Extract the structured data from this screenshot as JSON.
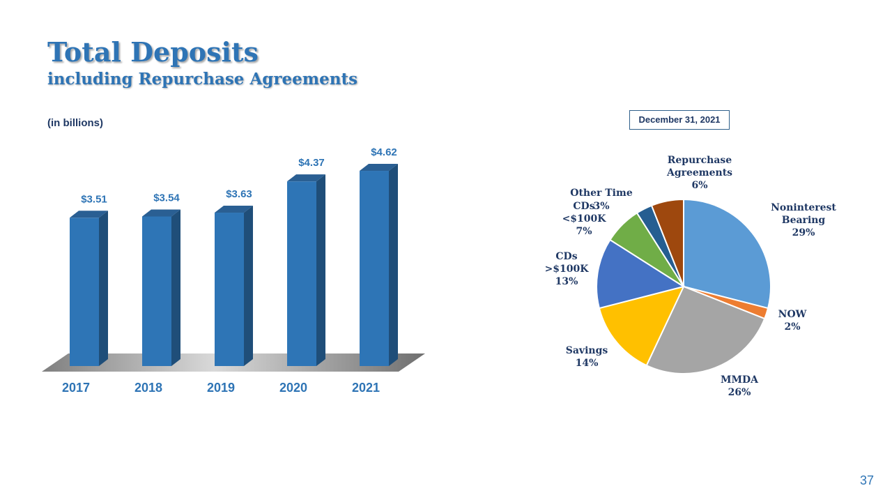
{
  "header": {
    "title": "Total Deposits",
    "subtitle": "including Repurchase Agreements"
  },
  "units_note": "(in billions)",
  "date_label": "December 31, 2021",
  "page_number": "37",
  "colors": {
    "title": "#2e74b5",
    "bar_front": "#2e75b6",
    "bar_side": "#1f4e79",
    "bar_top": "#2a5f93",
    "floor": "#a6a6a6"
  },
  "chart_data": [
    {
      "type": "bar",
      "categories": [
        "2017",
        "2018",
        "2019",
        "2020",
        "2021"
      ],
      "values": [
        3.51,
        3.54,
        3.63,
        4.37,
        4.62
      ],
      "data_labels": [
        "$3.51",
        "$3.54",
        "$3.63",
        "$4.37",
        "$4.62"
      ],
      "ylabel": "(in billions)",
      "grid": false,
      "style": "3d-column"
    },
    {
      "type": "pie",
      "title": "December 31, 2021",
      "slices": [
        {
          "label": "Noninterest Bearing",
          "value": 29,
          "display": "29%",
          "color": "#5b9bd5"
        },
        {
          "label": "NOW",
          "value": 2,
          "display": "2%",
          "color": "#ed7d31"
        },
        {
          "label": "MMDA",
          "value": 26,
          "display": "26%",
          "color": "#a5a5a5"
        },
        {
          "label": "Savings",
          "value": 14,
          "display": "14%",
          "color": "#ffc000"
        },
        {
          "label": "CDs >$100K",
          "value": 13,
          "display": "13%",
          "color": "#4472c4"
        },
        {
          "label": "CDs <$100K",
          "value": 7,
          "display": "7%",
          "color": "#70ad47"
        },
        {
          "label": "Other Time",
          "value": 3,
          "display": "3%",
          "color": "#255e91"
        },
        {
          "label": "Repurchase Agreements",
          "value": 6,
          "display": "6%",
          "color": "#9e480e"
        }
      ]
    }
  ]
}
